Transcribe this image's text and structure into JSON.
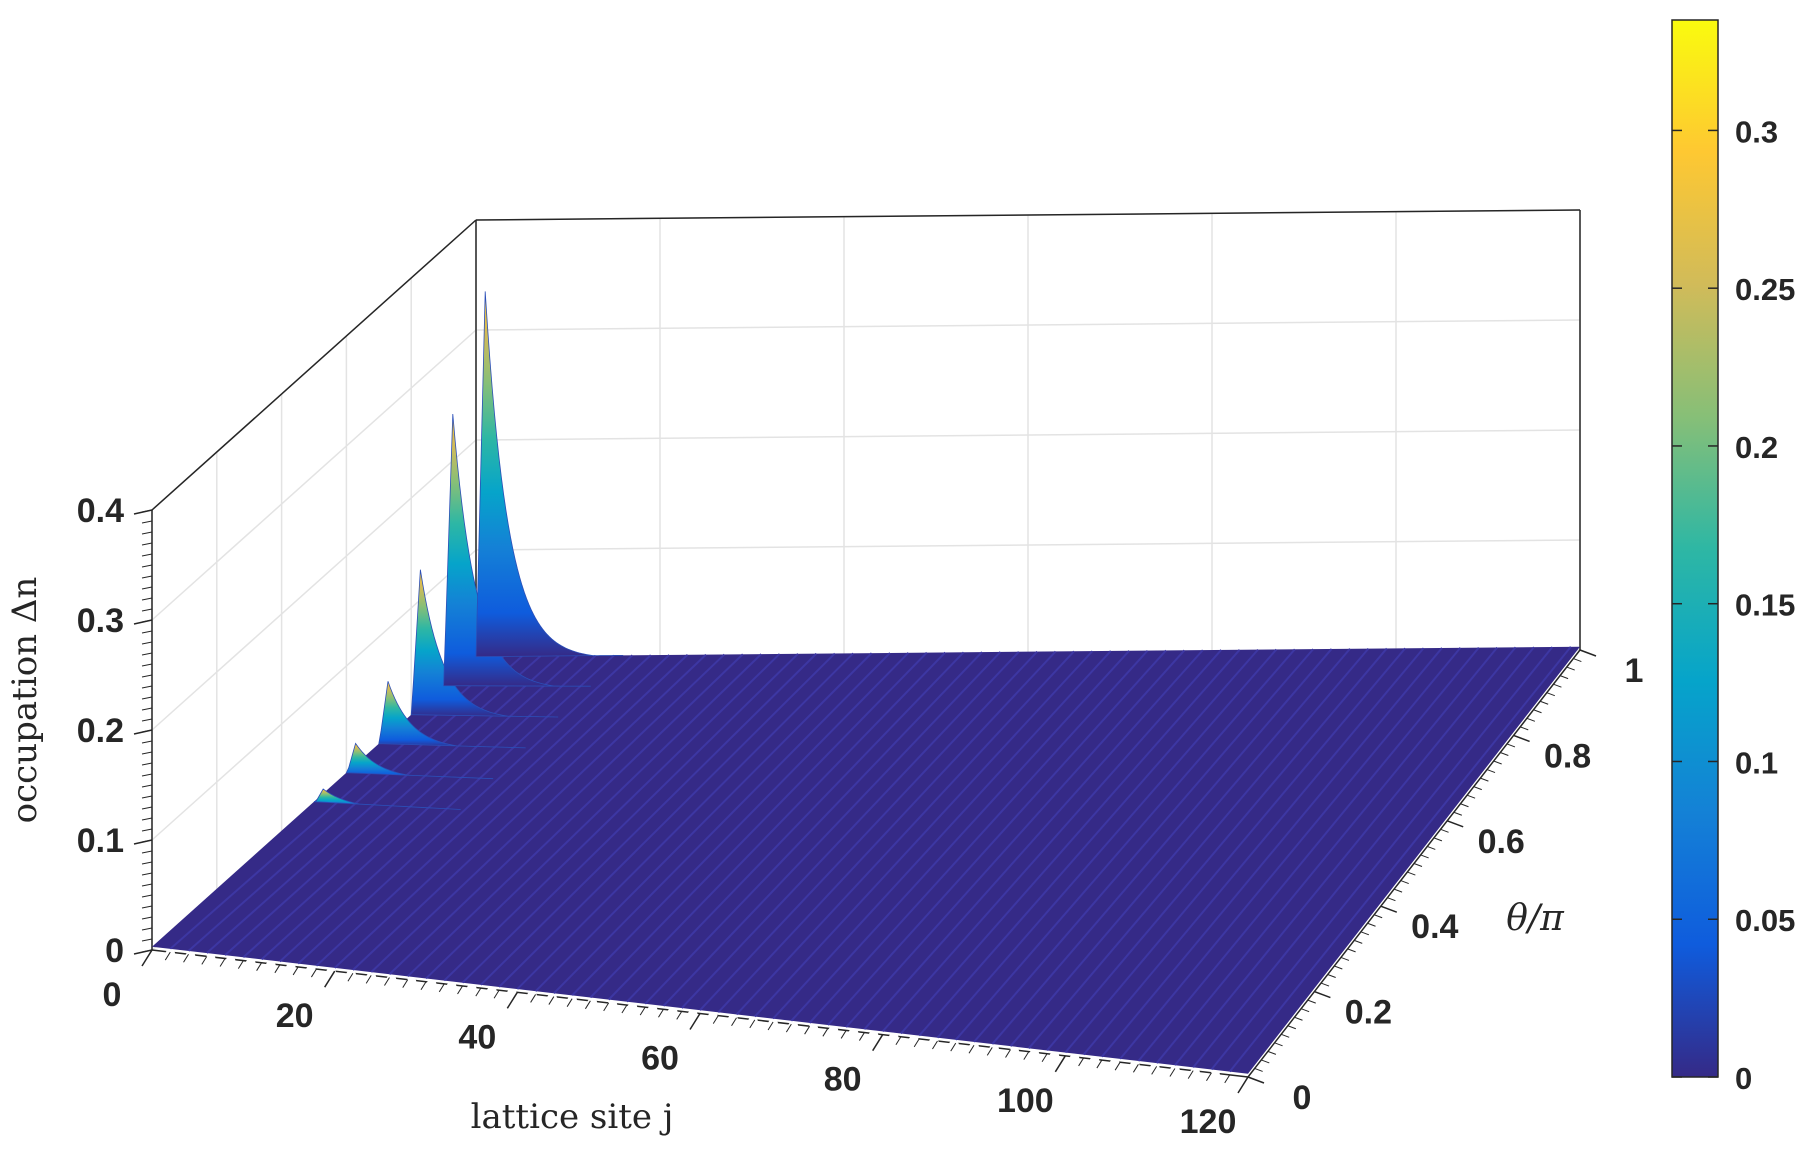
{
  "chart_data": {
    "type": "surface",
    "xlabel": "lattice site j",
    "ylabel": "θ/π",
    "zlabel": "occupation Δn",
    "xlim": [
      0,
      120
    ],
    "ylim": [
      0,
      1
    ],
    "zlim": [
      0,
      0.4
    ],
    "x_ticks": [
      "0",
      "20",
      "40",
      "60",
      "80",
      "100",
      "120"
    ],
    "y_ticks": [
      "0",
      "0.2",
      "0.4",
      "0.6",
      "0.8",
      "1"
    ],
    "z_ticks": [
      "0",
      "0.1",
      "0.2",
      "0.3",
      "0.4"
    ],
    "colorbar": {
      "colormap": "parula",
      "range": [
        0,
        0.335
      ],
      "ticks": [
        "0",
        "0.05",
        "0.1",
        "0.15",
        "0.2",
        "0.25",
        "0.3"
      ],
      "colors": [
        "#352a87",
        "#0f5cdd",
        "#1481d6",
        "#06a4ca",
        "#2eb7a4",
        "#87bf77",
        "#d1bb59",
        "#fec832",
        "#f9fb0e"
      ]
    },
    "grid": true,
    "ridges": [
      {
        "theta": 1.0,
        "peak": 0.335
      },
      {
        "theta": 0.9,
        "peak": 0.25
      },
      {
        "theta": 0.8,
        "peak": 0.135
      },
      {
        "theta": 0.7,
        "peak": 0.06
      },
      {
        "theta": 0.6,
        "peak": 0.03
      },
      {
        "theta": 0.5,
        "peak": 0.015
      }
    ],
    "peak_site": 1,
    "decay_sites": 2.5,
    "baseline_occupation": 0.003
  }
}
